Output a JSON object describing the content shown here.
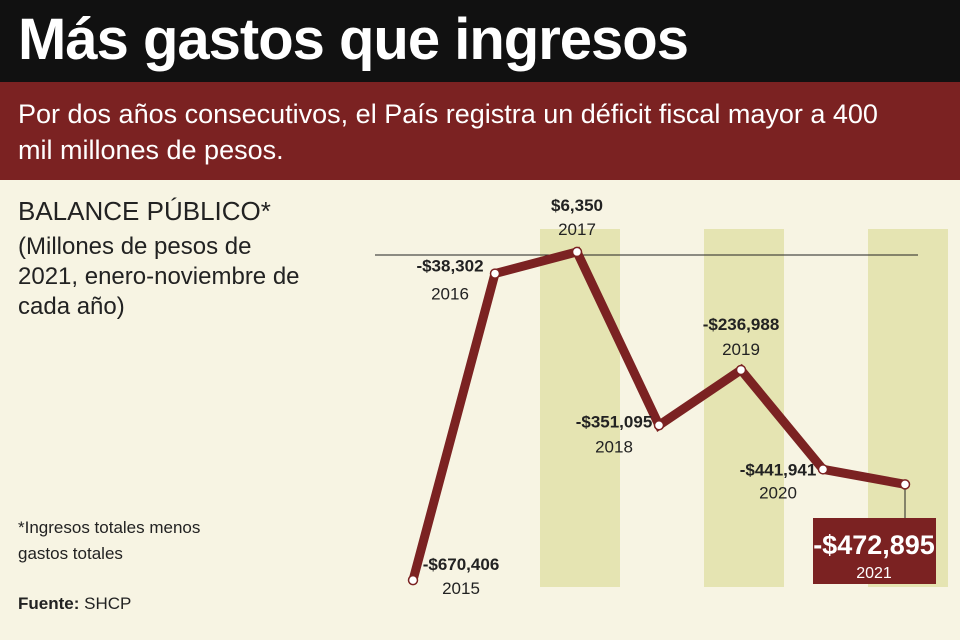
{
  "header": {
    "title": "Más gastos que ingresos",
    "subtitle": "Por dos años consecutivos, el País registra un déficit fiscal mayor a 400 mil millones de pesos."
  },
  "footer": {
    "note": "*Ingresos totales menos gastos totales",
    "source_label": "Fuente:",
    "source": "SHCP"
  },
  "colors": {
    "line": "#7b2222",
    "band": "#e5e4b2",
    "background": "#f7f4e3"
  },
  "chart_data": {
    "type": "line",
    "title": "BALANCE PÚBLICO*",
    "subtitle": "(Millones de pesos de 2021, enero-noviembre de cada año)",
    "x": [
      "2015",
      "2016",
      "2017",
      "2018",
      "2019",
      "2020",
      "2021"
    ],
    "values": [
      -670406,
      -38302,
      6350,
      -351095,
      -236988,
      -441941,
      -472895
    ],
    "labels": [
      "-$670,406",
      "-$38,302",
      "$6,350",
      "-$351,095",
      "-$236,988",
      "-$441,941",
      "-$472,895"
    ],
    "highlight": "2021",
    "reference_line": 0
  }
}
